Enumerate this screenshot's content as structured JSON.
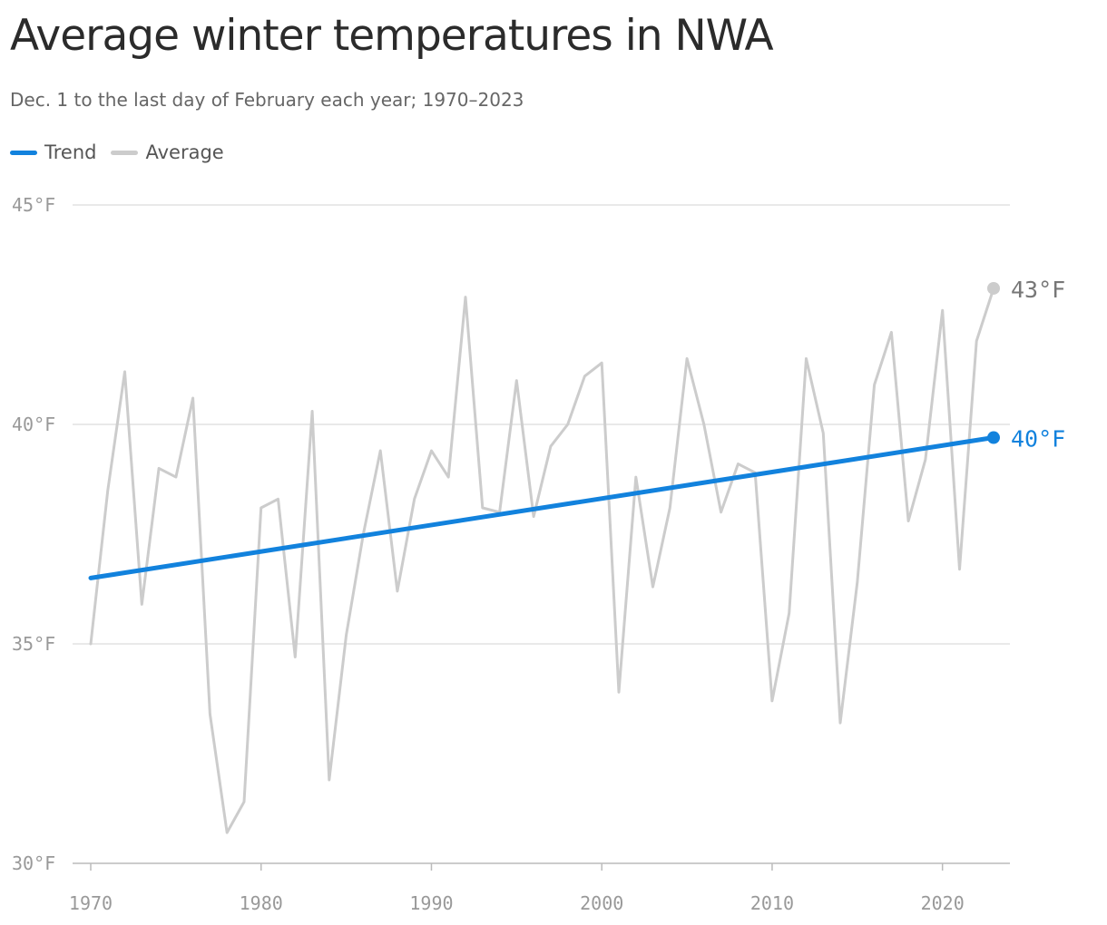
{
  "chart_data": {
    "type": "line",
    "title": "Average winter temperatures in NWA",
    "subtitle": "Dec. 1 to the last day of February each year; 1970–2023",
    "ylim": [
      30,
      45
    ],
    "y_ticks": [
      "30°F",
      "35°F",
      "40°F",
      "45°F"
    ],
    "x_ticks": [
      "1970",
      "1980",
      "1990",
      "2000",
      "2010",
      "2020"
    ],
    "legend_placement": "top-left",
    "grid": true,
    "series": [
      {
        "name": "Trend",
        "color": "#1282dd",
        "end_label": "40°F",
        "x": [
          1970,
          2023
        ],
        "values": [
          36.5,
          39.7
        ]
      },
      {
        "name": "Average",
        "color": "#cccccc",
        "end_label": "43°F",
        "x": [
          1970,
          1971,
          1972,
          1973,
          1974,
          1975,
          1976,
          1977,
          1978,
          1979,
          1980,
          1981,
          1982,
          1983,
          1984,
          1985,
          1986,
          1987,
          1988,
          1989,
          1990,
          1991,
          1992,
          1993,
          1994,
          1995,
          1996,
          1997,
          1998,
          1999,
          2000,
          2001,
          2002,
          2003,
          2004,
          2005,
          2006,
          2007,
          2008,
          2009,
          2010,
          2011,
          2012,
          2013,
          2014,
          2015,
          2016,
          2017,
          2018,
          2019,
          2020,
          2021,
          2022,
          2023
        ],
        "values": [
          35.0,
          38.5,
          41.2,
          35.9,
          39.0,
          38.8,
          40.6,
          33.4,
          30.7,
          31.4,
          38.1,
          38.3,
          34.7,
          40.3,
          31.9,
          35.2,
          37.5,
          39.4,
          36.2,
          38.3,
          39.4,
          38.8,
          42.9,
          38.1,
          38.0,
          41.0,
          37.9,
          39.5,
          40.0,
          41.1,
          41.4,
          33.9,
          38.8,
          36.3,
          38.1,
          41.5,
          40.0,
          38.0,
          39.1,
          38.9,
          33.7,
          35.7,
          41.5,
          39.8,
          33.2,
          36.4,
          40.9,
          42.1,
          37.8,
          39.2,
          42.6,
          36.7,
          41.9,
          43.1
        ]
      }
    ]
  }
}
